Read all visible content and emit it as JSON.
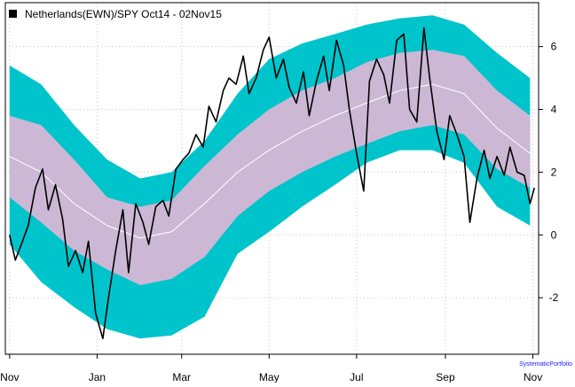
{
  "chart_data": {
    "type": "line",
    "legend": {
      "label": "Netherlands(EWN)/SPY Oct14 - 02Nov15",
      "position": "top-left"
    },
    "watermark": "SystematicPortfolio",
    "grid": true,
    "yaxis": {
      "side": "right",
      "ylim": [
        -3.8,
        7.4
      ],
      "ticks": [
        -2,
        0,
        2,
        4,
        6
      ]
    },
    "xaxis": {
      "range": [
        "2014-10-29",
        "2015-11-05"
      ],
      "ticks": [
        {
          "date": "2014-11-01",
          "label": "Nov"
        },
        {
          "date": "2015-01-01",
          "label": "Jan"
        },
        {
          "date": "2015-03-01",
          "label": "Mar"
        },
        {
          "date": "2015-05-01",
          "label": "May"
        },
        {
          "date": "2015-07-01",
          "label": "Jul"
        },
        {
          "date": "2015-09-01",
          "label": "Sep"
        },
        {
          "date": "2015-11-01",
          "label": "Nov"
        }
      ]
    },
    "colors": {
      "outer_band": "#00c4cc",
      "inner_band": "#ccb8d4",
      "moving_average": "#ffffff",
      "price_line": "#000000",
      "grid": "#c8c8c8",
      "watermark": "#1a1aff"
    },
    "bands_x": [
      "2014-11-01",
      "2014-11-23",
      "2014-12-16",
      "2015-01-08",
      "2015-01-31",
      "2015-02-22",
      "2015-03-17",
      "2015-04-09",
      "2015-05-01",
      "2015-05-24",
      "2015-06-16",
      "2015-07-08",
      "2015-07-31",
      "2015-08-23",
      "2015-09-14",
      "2015-10-07",
      "2015-10-30"
    ],
    "series": [
      {
        "role": "outer_upper",
        "values": [
          5.4,
          4.8,
          3.5,
          2.4,
          1.8,
          2.0,
          3.0,
          4.5,
          5.6,
          6.1,
          6.4,
          6.7,
          6.9,
          7.0,
          6.7,
          5.8,
          5.0
        ]
      },
      {
        "role": "inner_upper",
        "values": [
          3.8,
          3.5,
          2.4,
          1.2,
          0.9,
          1.1,
          2.2,
          3.2,
          4.0,
          4.6,
          5.0,
          5.5,
          5.8,
          5.9,
          5.7,
          4.6,
          3.8
        ]
      },
      {
        "role": "moving_average",
        "values": [
          2.5,
          2.0,
          1.0,
          0.3,
          -0.1,
          0.1,
          1.0,
          2.0,
          2.7,
          3.3,
          3.8,
          4.2,
          4.6,
          4.8,
          4.5,
          3.4,
          2.6
        ]
      },
      {
        "role": "inner_lower",
        "values": [
          1.2,
          0.4,
          -0.5,
          -1.1,
          -1.6,
          -1.4,
          -0.7,
          0.6,
          1.4,
          2.0,
          2.5,
          2.9,
          3.3,
          3.5,
          3.2,
          2.1,
          1.5
        ]
      },
      {
        "role": "outer_lower",
        "values": [
          -0.3,
          -1.5,
          -2.3,
          -3.0,
          -3.3,
          -3.2,
          -2.6,
          -0.6,
          0.1,
          0.9,
          1.6,
          2.3,
          2.7,
          2.7,
          2.3,
          0.9,
          0.3
        ]
      },
      {
        "role": "price",
        "x": [
          "2014-11-01",
          "2014-11-05",
          "2014-11-10",
          "2014-11-14",
          "2014-11-19",
          "2014-11-24",
          "2014-11-28",
          "2014-12-03",
          "2014-12-08",
          "2014-12-12",
          "2014-12-17",
          "2014-12-22",
          "2014-12-26",
          "2014-12-31",
          "2015-01-05",
          "2015-01-09",
          "2015-01-14",
          "2015-01-19",
          "2015-01-23",
          "2015-01-28",
          "2015-02-02",
          "2015-02-06",
          "2015-02-11",
          "2015-02-16",
          "2015-02-20",
          "2015-02-25",
          "2015-03-02",
          "2015-03-06",
          "2015-03-11",
          "2015-03-16",
          "2015-03-20",
          "2015-03-25",
          "2015-03-30",
          "2015-04-03",
          "2015-04-08",
          "2015-04-13",
          "2015-04-17",
          "2015-04-22",
          "2015-04-27",
          "2015-05-01",
          "2015-05-06",
          "2015-05-11",
          "2015-05-15",
          "2015-05-20",
          "2015-05-25",
          "2015-05-29",
          "2015-06-03",
          "2015-06-08",
          "2015-06-12",
          "2015-06-17",
          "2015-06-22",
          "2015-06-26",
          "2015-07-01",
          "2015-07-06",
          "2015-07-10",
          "2015-07-15",
          "2015-07-20",
          "2015-07-24",
          "2015-07-29",
          "2015-08-03",
          "2015-08-07",
          "2015-08-12",
          "2015-08-17",
          "2015-08-21",
          "2015-08-26",
          "2015-08-31",
          "2015-09-04",
          "2015-09-09",
          "2015-09-14",
          "2015-09-18",
          "2015-09-23",
          "2015-09-28",
          "2015-10-02",
          "2015-10-07",
          "2015-10-12",
          "2015-10-16",
          "2015-10-21",
          "2015-10-26",
          "2015-10-30",
          "2015-11-02"
        ],
        "values": [
          0.0,
          -0.8,
          -0.2,
          0.3,
          1.5,
          2.1,
          0.8,
          1.6,
          0.5,
          -1.0,
          -0.5,
          -1.2,
          -0.2,
          -2.5,
          -3.3,
          -2.0,
          -0.5,
          0.8,
          -1.2,
          1.0,
          0.4,
          -0.3,
          0.9,
          1.1,
          0.6,
          2.1,
          2.4,
          2.6,
          3.2,
          2.8,
          4.1,
          3.6,
          4.6,
          5.0,
          4.8,
          5.7,
          4.5,
          5.0,
          5.9,
          6.3,
          5.0,
          5.6,
          4.7,
          4.2,
          5.2,
          3.8,
          4.9,
          5.7,
          4.6,
          6.2,
          5.4,
          4.0,
          2.6,
          1.4,
          4.9,
          5.6,
          5.1,
          4.2,
          6.2,
          6.4,
          4.0,
          3.6,
          6.6,
          5.0,
          3.3,
          2.4,
          3.8,
          3.2,
          2.5,
          0.4,
          1.8,
          2.7,
          1.8,
          2.5,
          1.9,
          2.8,
          2.0,
          1.9,
          1.0,
          1.5
        ]
      }
    ]
  }
}
